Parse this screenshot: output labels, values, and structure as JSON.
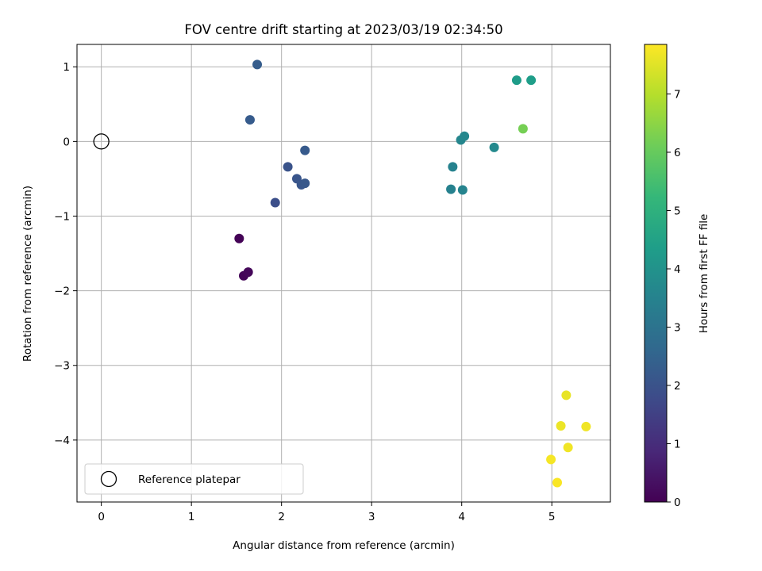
{
  "chart_data": {
    "type": "scatter",
    "title": "FOV centre drift starting at 2023/03/19 02:34:50",
    "xlabel": "Angular distance from reference (arcmin)",
    "ylabel": "Rotation from reference (arcmin)",
    "xlim": [
      -0.27,
      5.65
    ],
    "ylim": [
      -4.83,
      1.3
    ],
    "x_ticks": [
      0,
      1,
      2,
      3,
      4,
      5
    ],
    "y_ticks": [
      1,
      0,
      -1,
      -2,
      -3,
      -4
    ],
    "grid": true,
    "legend": {
      "placement": "lower-left",
      "entries": [
        "Reference platepar"
      ]
    },
    "reference_point": {
      "x": 0,
      "y": 0
    },
    "colorbar": {
      "label": "Hours from first FF file",
      "range": [
        0,
        7.85
      ],
      "ticks": [
        0,
        1,
        2,
        3,
        4,
        5,
        6,
        7
      ],
      "colormap": "viridis"
    },
    "points": [
      {
        "x": 1.53,
        "y": -1.3,
        "hours": 0.05
      },
      {
        "x": 1.58,
        "y": -1.8,
        "hours": 0.1
      },
      {
        "x": 1.63,
        "y": -1.75,
        "hours": 0.15
      },
      {
        "x": 1.93,
        "y": -0.82,
        "hours": 1.9
      },
      {
        "x": 2.07,
        "y": -0.34,
        "hours": 2.0
      },
      {
        "x": 2.17,
        "y": -0.5,
        "hours": 2.05
      },
      {
        "x": 2.22,
        "y": -0.58,
        "hours": 2.1
      },
      {
        "x": 2.26,
        "y": -0.56,
        "hours": 2.15
      },
      {
        "x": 2.26,
        "y": -0.12,
        "hours": 2.2
      },
      {
        "x": 1.65,
        "y": 0.29,
        "hours": 2.25
      },
      {
        "x": 1.73,
        "y": 1.03,
        "hours": 2.3
      },
      {
        "x": 3.88,
        "y": -0.64,
        "hours": 3.45
      },
      {
        "x": 3.9,
        "y": -0.34,
        "hours": 3.5
      },
      {
        "x": 4.01,
        "y": -0.65,
        "hours": 3.55
      },
      {
        "x": 3.99,
        "y": 0.02,
        "hours": 3.6
      },
      {
        "x": 4.03,
        "y": 0.07,
        "hours": 3.65
      },
      {
        "x": 4.36,
        "y": -0.08,
        "hours": 3.7
      },
      {
        "x": 4.61,
        "y": 0.82,
        "hours": 4.3
      },
      {
        "x": 4.77,
        "y": 0.82,
        "hours": 4.35
      },
      {
        "x": 4.68,
        "y": 0.17,
        "hours": 6.2
      },
      {
        "x": 5.16,
        "y": -3.4,
        "hours": 7.6
      },
      {
        "x": 5.1,
        "y": -3.81,
        "hours": 7.65
      },
      {
        "x": 5.38,
        "y": -3.82,
        "hours": 7.7
      },
      {
        "x": 5.18,
        "y": -4.1,
        "hours": 7.7
      },
      {
        "x": 4.99,
        "y": -4.26,
        "hours": 7.75
      },
      {
        "x": 5.06,
        "y": -4.57,
        "hours": 7.8
      }
    ]
  }
}
